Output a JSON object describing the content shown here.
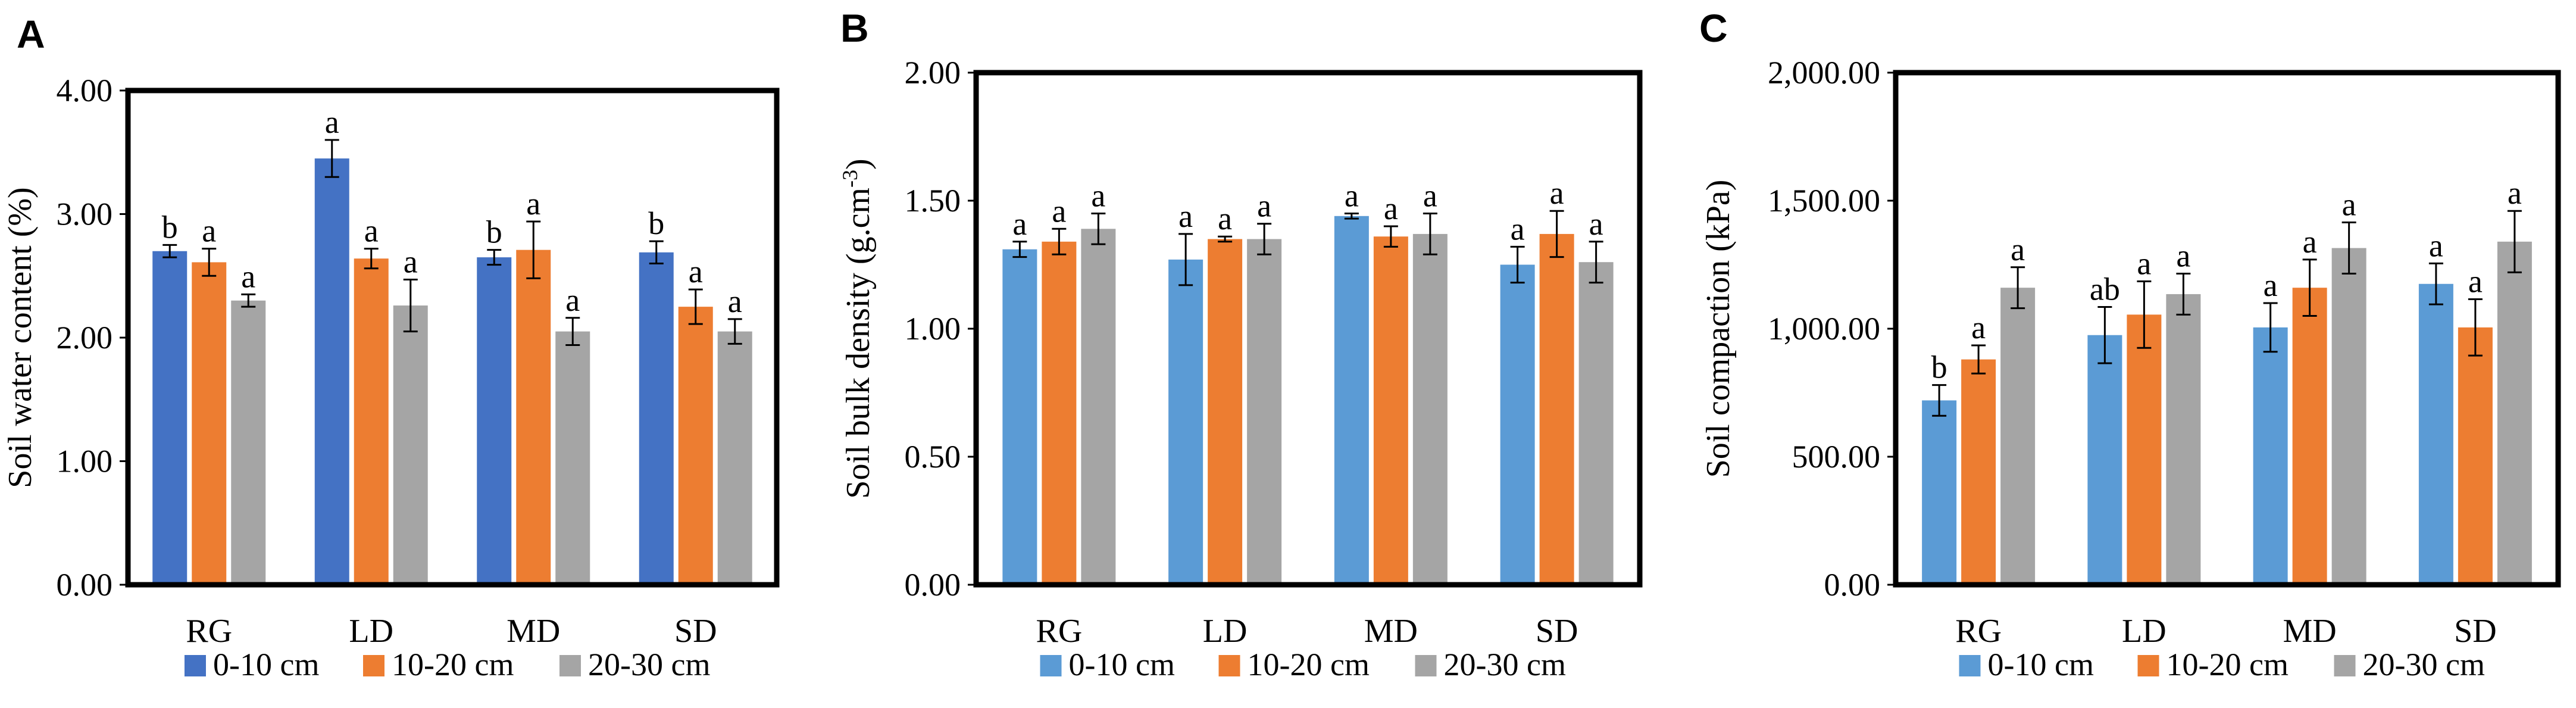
{
  "chart_data": [
    {
      "type": "bar",
      "panel_label": "A",
      "ylabel": "Soil water content (%)",
      "xlabel": "",
      "ylim": [
        0,
        4
      ],
      "yticks": [
        0,
        1,
        2,
        3,
        4
      ],
      "ytick_labels": [
        "0.00",
        "1.00",
        "2.00",
        "3.00",
        "4.00"
      ],
      "categories": [
        "RG",
        "LD",
        "MD",
        "SD"
      ],
      "series": [
        {
          "name": "0-10 cm",
          "color": "#4472C4",
          "values": [
            2.7,
            3.45,
            2.65,
            2.69
          ],
          "errors": [
            0.05,
            0.15,
            0.06,
            0.09
          ],
          "letters": [
            "b",
            "a",
            "b",
            "b"
          ]
        },
        {
          "name": "10-20 cm",
          "color": "#ED7D31",
          "values": [
            2.61,
            2.64,
            2.71,
            2.25
          ],
          "errors": [
            0.11,
            0.08,
            0.23,
            0.14
          ],
          "letters": [
            "a",
            "a",
            "a",
            "a"
          ]
        },
        {
          "name": "20-30 cm",
          "color": "#A5A5A5",
          "values": [
            2.3,
            2.26,
            2.05,
            2.05
          ],
          "errors": [
            0.05,
            0.21,
            0.11,
            0.1
          ],
          "letters": [
            "a",
            "a",
            "a",
            "a"
          ]
        }
      ],
      "legend": "bottom"
    },
    {
      "type": "bar",
      "panel_label": "B",
      "ylabel": "Soil bulk density (g.cm",
      "ylabel_sup": "-3",
      "ylabel_end": ")",
      "xlabel": "",
      "ylim": [
        0,
        2
      ],
      "yticks": [
        0,
        0.5,
        1,
        1.5,
        2
      ],
      "ytick_labels": [
        "0.00",
        "0.50",
        "1.00",
        "1.50",
        "2.00"
      ],
      "categories": [
        "RG",
        "LD",
        "MD",
        "SD"
      ],
      "series": [
        {
          "name": "0-10 cm",
          "color": "#5B9BD5",
          "values": [
            1.31,
            1.27,
            1.44,
            1.25
          ],
          "errors": [
            0.03,
            0.1,
            0.01,
            0.07
          ],
          "letters": [
            "a",
            "a",
            "a",
            "a"
          ]
        },
        {
          "name": "10-20 cm",
          "color": "#ED7D31",
          "values": [
            1.34,
            1.35,
            1.36,
            1.37
          ],
          "errors": [
            0.05,
            0.01,
            0.04,
            0.09
          ],
          "letters": [
            "a",
            "a",
            "a",
            "a"
          ]
        },
        {
          "name": "20-30 cm",
          "color": "#A5A5A5",
          "values": [
            1.39,
            1.35,
            1.37,
            1.26
          ],
          "errors": [
            0.06,
            0.06,
            0.08,
            0.08
          ],
          "letters": [
            "a",
            "a",
            "a",
            "a"
          ]
        }
      ],
      "legend": "bottom"
    },
    {
      "type": "bar",
      "panel_label": "C",
      "ylabel": "Soil compaction (kPa)",
      "xlabel": "",
      "ylim": [
        0,
        2000
      ],
      "yticks": [
        0,
        500,
        1000,
        1500,
        2000
      ],
      "ytick_labels": [
        "0.00",
        "500.00",
        "1,000.00",
        "1,500.00",
        "2,000.00"
      ],
      "categories": [
        "RG",
        "LD",
        "MD",
        "SD"
      ],
      "series": [
        {
          "name": "0-10 cm",
          "color": "#5B9BD5",
          "values": [
            720,
            975,
            1005,
            1175
          ],
          "errors": [
            60,
            110,
            95,
            80
          ],
          "letters": [
            "b",
            "ab",
            "a",
            "a"
          ]
        },
        {
          "name": "10-20 cm",
          "color": "#ED7D31",
          "values": [
            880,
            1055,
            1160,
            1005
          ],
          "errors": [
            55,
            130,
            110,
            110
          ],
          "letters": [
            "a",
            "a",
            "a",
            "a"
          ]
        },
        {
          "name": "20-30 cm",
          "color": "#A5A5A5",
          "values": [
            1160,
            1135,
            1315,
            1340
          ],
          "errors": [
            80,
            80,
            100,
            120
          ],
          "letters": [
            "a",
            "a",
            "a",
            "a"
          ]
        }
      ],
      "legend": "bottom"
    }
  ]
}
